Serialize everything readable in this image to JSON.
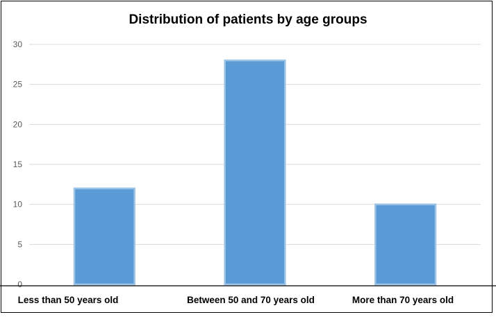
{
  "chart_data": {
    "type": "bar",
    "title": "Distribution of patients by age groups",
    "categories": [
      "Less than 50 years old",
      "Between 50 and 70 years old",
      "More than 70 years old"
    ],
    "values": [
      12,
      28,
      10
    ],
    "ylim": [
      0,
      30
    ],
    "yticks": [
      0,
      5,
      10,
      15,
      20,
      25,
      30
    ],
    "xlabel": "",
    "ylabel": "",
    "grid": true,
    "legend": "none",
    "colors": {
      "bar": "#5b9bd5",
      "bar_edge": "#9dc3e6",
      "grid": "#d9d9d9",
      "axis": "#000000"
    }
  }
}
